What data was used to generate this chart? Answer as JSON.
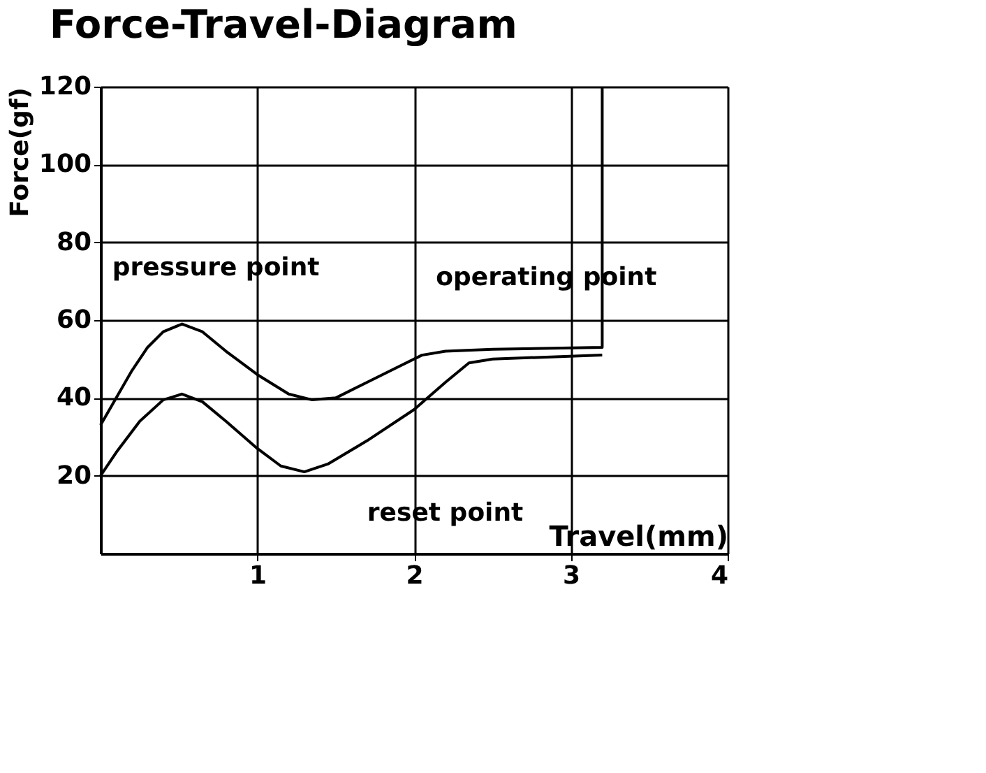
{
  "chart_data": {
    "type": "line",
    "title": "Force-Travel-Diagram",
    "xlabel": "Travel(mm)",
    "ylabel": "Force(gf)",
    "xlim": [
      0,
      4
    ],
    "xticks": [
      1,
      2,
      3,
      4
    ],
    "ylim": [
      0,
      120
    ],
    "yticks": [
      20,
      40,
      60,
      80,
      100,
      120
    ],
    "grid": true,
    "marker": "none",
    "line_style": "solid",
    "series": [
      {
        "color": "#000000",
        "x": [
          0,
          0.1,
          0.2,
          0.3,
          0.4,
          0.52,
          0.65,
          0.8,
          1.0,
          1.2,
          1.35,
          1.5,
          1.7,
          1.9,
          2.05,
          2.2,
          2.5,
          3.2,
          3.2
        ],
        "values": [
          33,
          40,
          47,
          53,
          57,
          59,
          57,
          52,
          46,
          41,
          39.5,
          40,
          44,
          48,
          51,
          52,
          52.5,
          53,
          120
        ]
      },
      {
        "color": "#000000",
        "x": [
          0,
          0.1,
          0.25,
          0.4,
          0.52,
          0.65,
          0.8,
          1.0,
          1.15,
          1.3,
          1.45,
          1.7,
          2.0,
          2.2,
          2.35,
          2.5,
          3.2
        ],
        "values": [
          20,
          26,
          34,
          39.5,
          41,
          39,
          34,
          27,
          22.5,
          21,
          23,
          29,
          37,
          44,
          49,
          50,
          51
        ]
      }
    ],
    "annotations": [
      {
        "text": "pressure point",
        "x": 0.52,
        "y": 59
      },
      {
        "text": "operating point",
        "x": 2.05,
        "y": 51
      },
      {
        "text": "reset point",
        "x": 1.3,
        "y": 21
      }
    ]
  }
}
